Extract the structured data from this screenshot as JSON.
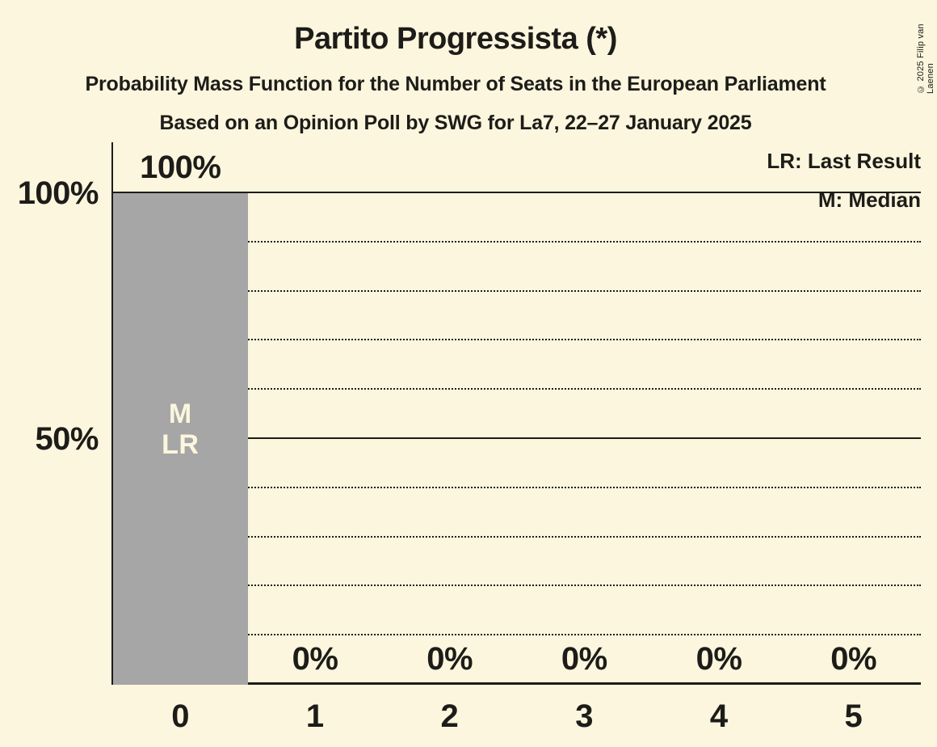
{
  "header": {
    "title": "Partito Progressista (*)",
    "subtitle": "Probability Mass Function for the Number of Seats in the European Parliament",
    "source_line": "Based on an Opinion Poll by SWG for La7, 22–27 January 2025",
    "copyright": "© 2025 Filip van Laenen"
  },
  "legend": {
    "lr": "LR: Last Result",
    "m": "M: Median"
  },
  "colors": {
    "background": "#fbf6dd",
    "bar": "#a6a6a6",
    "text": "#1d1c19"
  },
  "chart_data": {
    "type": "bar",
    "title": "Partito Progressista (*)",
    "xlabel": "",
    "ylabel": "",
    "categories": [
      "0",
      "1",
      "2",
      "3",
      "4",
      "5"
    ],
    "values": [
      100,
      0,
      0,
      0,
      0,
      0
    ],
    "value_labels": [
      "100%",
      "0%",
      "0%",
      "0%",
      "0%",
      "0%"
    ],
    "ylim": [
      0,
      100
    ],
    "y_ticks": [
      {
        "value": 100,
        "label": "100%"
      },
      {
        "value": 50,
        "label": "50%"
      }
    ],
    "solid_gridlines": [
      100,
      50
    ],
    "dotted_gridlines": [
      90,
      80,
      70,
      60,
      40,
      30,
      20,
      10
    ],
    "legend_position": "top-right",
    "annotations": [
      {
        "category": "0",
        "lines": [
          "M",
          "LR"
        ]
      }
    ]
  }
}
